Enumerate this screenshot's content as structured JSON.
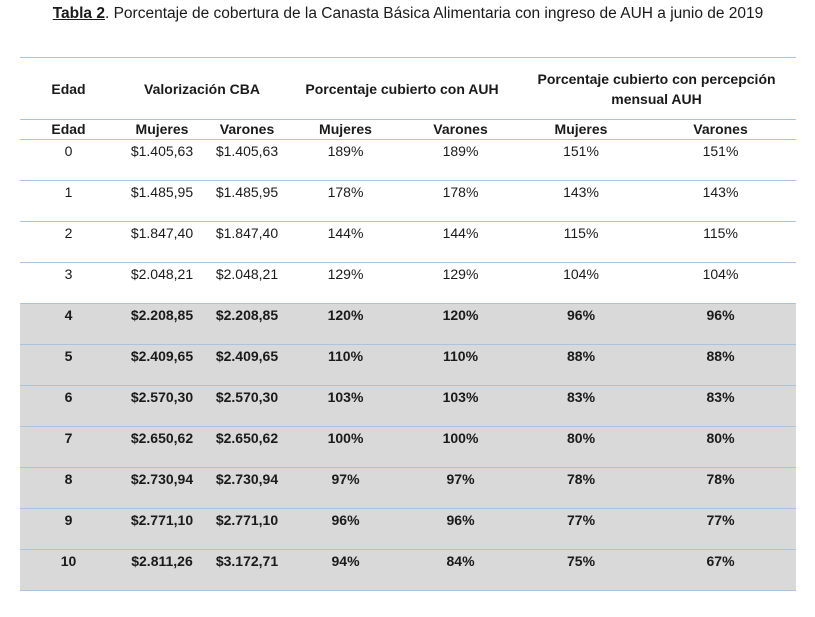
{
  "caption": {
    "label": "Tabla 2",
    "text": ". Porcentaje de cobertura de la Canasta Básica Alimentaria con ingreso de AUH a junio de 2019"
  },
  "header": {
    "edad": "Edad",
    "valorizacion": "Valorización CBA",
    "auh": "Porcentaje cubierto con AUH",
    "percepcion": "Porcentaje cubierto con percepción mensual AUH"
  },
  "subheader": {
    "edad": "Edad",
    "mujeres_1": "Mujeres",
    "varones_1": "Varones",
    "mujeres_2": "Mujeres",
    "varones_2": "Varones",
    "mujeres_3": "Mujeres",
    "varones_3": "Varones"
  },
  "rows": [
    {
      "edad": "0",
      "cba_m": "$1.405,63",
      "cba_v": "$1.405,63",
      "auh_m": "189%",
      "auh_v": "189%",
      "men_m": "151%",
      "men_v": "151%"
    },
    {
      "edad": "1",
      "cba_m": "$1.485,95",
      "cba_v": "$1.485,95",
      "auh_m": "178%",
      "auh_v": "178%",
      "men_m": "143%",
      "men_v": "143%"
    },
    {
      "edad": "2",
      "cba_m": "$1.847,40",
      "cba_v": "$1.847,40",
      "auh_m": "144%",
      "auh_v": "144%",
      "men_m": "115%",
      "men_v": "115%"
    },
    {
      "edad": "3",
      "cba_m": "$2.048,21",
      "cba_v": "$2.048,21",
      "auh_m": "129%",
      "auh_v": "129%",
      "men_m": "104%",
      "men_v": "104%"
    },
    {
      "edad": "4",
      "cba_m": "$2.208,85",
      "cba_v": "$2.208,85",
      "auh_m": "120%",
      "auh_v": "120%",
      "men_m": "96%",
      "men_v": "96%"
    },
    {
      "edad": "5",
      "cba_m": "$2.409,65",
      "cba_v": "$2.409,65",
      "auh_m": "110%",
      "auh_v": "110%",
      "men_m": "88%",
      "men_v": "88%"
    },
    {
      "edad": "6",
      "cba_m": "$2.570,30",
      "cba_v": "$2.570,30",
      "auh_m": "103%",
      "auh_v": "103%",
      "men_m": "83%",
      "men_v": "83%"
    },
    {
      "edad": "7",
      "cba_m": "$2.650,62",
      "cba_v": "$2.650,62",
      "auh_m": "100%",
      "auh_v": "100%",
      "men_m": "80%",
      "men_v": "80%"
    },
    {
      "edad": "8",
      "cba_m": "$2.730,94",
      "cba_v": "$2.730,94",
      "auh_m": "97%",
      "auh_v": "97%",
      "men_m": "78%",
      "men_v": "78%"
    },
    {
      "edad": "9",
      "cba_m": "$2.771,10",
      "cba_v": "$2.771,10",
      "auh_m": "96%",
      "auh_v": "96%",
      "men_m": "77%",
      "men_v": "77%"
    },
    {
      "edad": "10",
      "cba_m": "$2.811,26",
      "cba_v": "$3.172,71",
      "auh_m": "94%",
      "auh_v": "84%",
      "men_m": "75%",
      "men_v": "67%"
    }
  ],
  "colors": {
    "rule": "#a9c3e3",
    "highlight_fill": "#d9d9d9",
    "text": "#1a1a1a"
  }
}
